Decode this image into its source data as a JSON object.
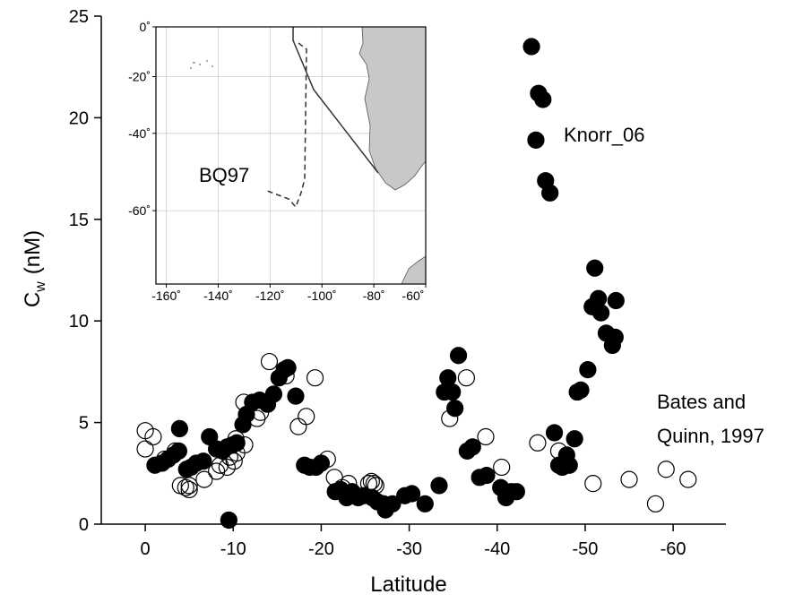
{
  "chart_data": [
    {
      "type": "scatter",
      "xlabel": "Latitude",
      "ylabel": [
        "C",
        "w",
        "(nM)"
      ],
      "xlim": [
        5,
        -66
      ],
      "ylim": [
        0,
        25
      ],
      "xticks": [
        0,
        -10,
        -20,
        -30,
        -40,
        -50,
        -60
      ],
      "yticks": [
        0,
        5,
        10,
        15,
        20,
        25
      ],
      "series": [
        {
          "name": "Knorr_06",
          "color": "#000000",
          "marker": "filled",
          "x": [
            -43.9,
            -44.7,
            -45.2,
            -44.4,
            -45.5,
            -46.0,
            -51.1,
            -51.5,
            -50.8,
            -53.5,
            -51.8,
            -52.4,
            -53.4,
            -53.1,
            -50.3,
            -49.5,
            -49.1,
            -48.8,
            -46.5,
            -47.0,
            -47.9,
            -47.4,
            -48.2,
            -33.4,
            -34.0,
            -34.4,
            -34.9,
            -35.2,
            -35.6,
            -36.6,
            -37.2,
            -38.0,
            -38.8,
            -40.4,
            -41.0,
            -41.6,
            -42.2,
            -1.1,
            -1.9,
            -2.6,
            -3.2,
            -3.8,
            -3.9,
            -4.7,
            -5.2,
            -5.8,
            -6.6,
            -7.3,
            -8.1,
            -8.8,
            -9.3,
            -9.9,
            -9.5,
            -10.4,
            -11.1,
            -11.5,
            -12.2,
            -13.0,
            -13.9,
            -14.6,
            -15.2,
            -15.8,
            -16.2,
            -17.1,
            -18.1,
            -18.7,
            -19.4,
            -20.0,
            -21.6,
            -22.2,
            -22.9,
            -23.5,
            -24.2,
            -24.8,
            -25.8,
            -26.4,
            -27.1,
            -27.3,
            -28.1,
            -29.5,
            -30.3,
            -31.8
          ],
          "values": [
            23.5,
            21.2,
            20.9,
            18.9,
            16.9,
            16.3,
            12.6,
            11.1,
            10.7,
            11.0,
            10.4,
            9.4,
            9.2,
            8.8,
            7.6,
            6.6,
            6.5,
            4.2,
            4.5,
            2.9,
            3.4,
            2.8,
            2.9,
            1.9,
            6.5,
            7.2,
            6.5,
            5.7,
            8.3,
            3.6,
            3.8,
            2.3,
            2.4,
            1.8,
            1.3,
            1.6,
            1.6,
            2.9,
            3.0,
            3.2,
            3.4,
            3.6,
            4.7,
            2.7,
            2.8,
            3.0,
            3.1,
            4.3,
            3.7,
            3.6,
            3.8,
            3.9,
            0.2,
            4.0,
            4.9,
            5.4,
            6.0,
            6.1,
            5.9,
            6.4,
            7.2,
            7.6,
            7.7,
            6.3,
            2.9,
            2.8,
            2.8,
            3.0,
            1.6,
            1.7,
            1.3,
            1.6,
            1.3,
            1.4,
            1.3,
            1.1,
            1.0,
            0.7,
            1.0,
            1.4,
            1.5,
            1.0
          ]
        },
        {
          "name": "Bates and Quinn, 1997",
          "color": "#000000",
          "marker": "open",
          "x": [
            0,
            0,
            -0.9,
            -2.2,
            -3.4,
            -4.0,
            -4.6,
            -5.0,
            -5.0,
            -6.7,
            -8.1,
            -8.5,
            -9.3,
            -9.6,
            -10.1,
            -10.4,
            -10.3,
            -11.2,
            -11.3,
            -12.7,
            -13.1,
            -14.1,
            -16.0,
            -17.4,
            -18.3,
            -19.3,
            -20.7,
            -21.5,
            -22.4,
            -23.1,
            -25.4,
            -25.7,
            -26.0,
            -26.2,
            -34.6,
            -36.5,
            -38.7,
            -40.5,
            -44.6,
            -47.0,
            -50.9,
            -55.0,
            -59.2,
            -58.0,
            -61.7
          ],
          "values": [
            4.6,
            3.7,
            4.3,
            3.2,
            3.6,
            1.9,
            1.8,
            1.9,
            1.7,
            2.2,
            2.6,
            2.9,
            2.8,
            3.3,
            3.1,
            3.5,
            4.2,
            6.0,
            3.9,
            5.2,
            5.5,
            8.0,
            7.3,
            4.8,
            5.3,
            7.2,
            3.2,
            2.3,
            1.8,
            2.0,
            2.0,
            2.1,
            2.0,
            1.9,
            5.2,
            7.2,
            4.3,
            2.8,
            4.0,
            3.6,
            2.0,
            2.2,
            2.7,
            1.0,
            2.2
          ]
        }
      ]
    },
    {
      "type": "map",
      "projection": "mercator",
      "annotation": "BQ97",
      "grid": true,
      "xlim": [
        -164,
        -60
      ],
      "ylim": [
        0,
        -72
      ],
      "xticks": [
        {
          "value": -160,
          "label": "-160˚"
        },
        {
          "value": -140,
          "label": "-140˚"
        },
        {
          "value": -120,
          "label": "-120˚"
        },
        {
          "value": -100,
          "label": "-100˚"
        },
        {
          "value": -80,
          "label": "-80˚"
        },
        {
          "value": -60,
          "label": "-60˚"
        }
      ],
      "yticks": [
        {
          "value": 0,
          "label": "0˚"
        },
        {
          "value": -20,
          "label": "-20˚"
        },
        {
          "value": -40,
          "label": "-40˚"
        },
        {
          "value": -60,
          "label": "-60˚"
        }
      ]
    }
  ]
}
